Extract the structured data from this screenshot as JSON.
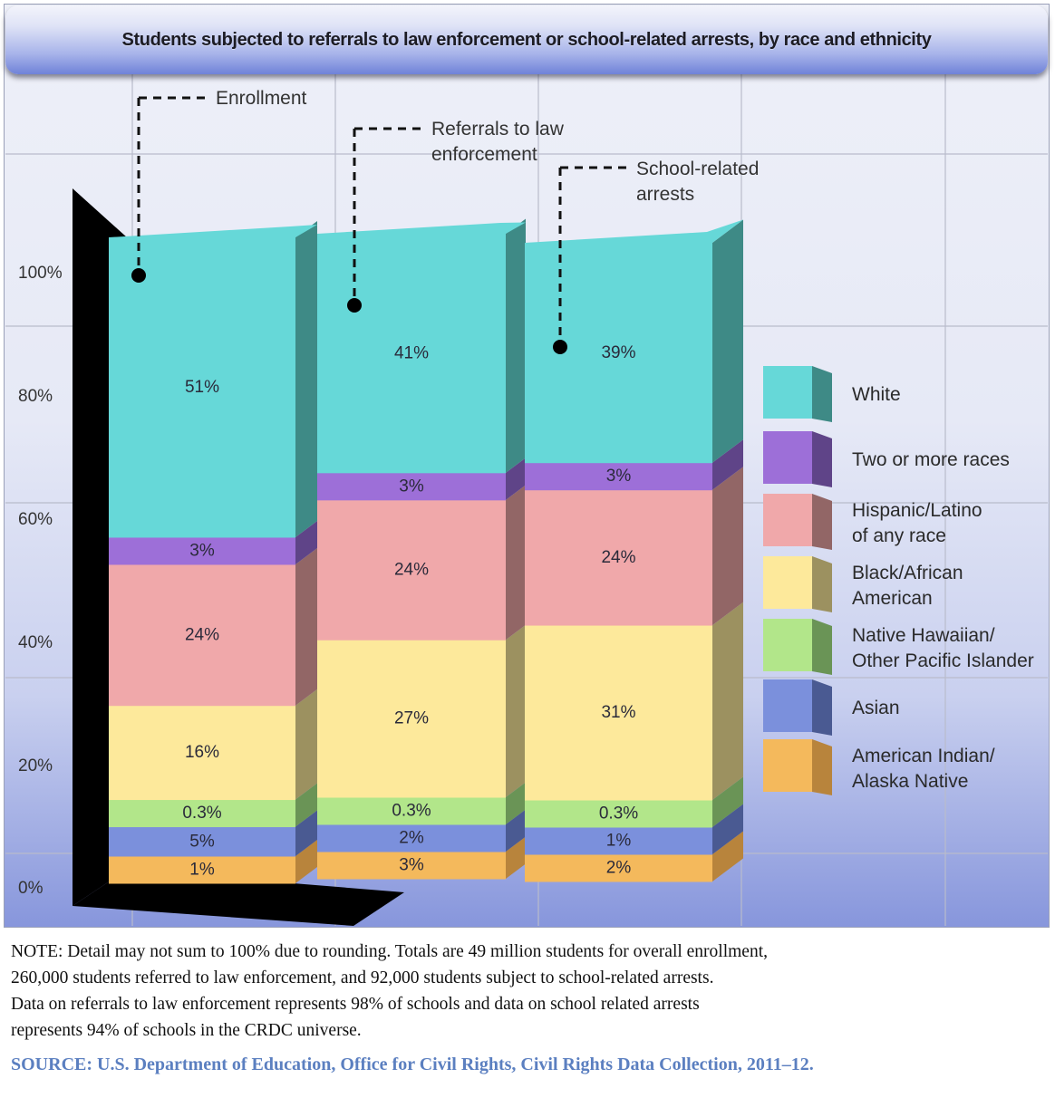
{
  "chart_data": {
    "type": "bar",
    "subtype": "stacked-3d",
    "title": "Students subjected to referrals to law enforcement or school-related arrests, by race and ethnicity",
    "ylim": [
      0,
      100
    ],
    "yticks": [
      "0%",
      "20%",
      "40%",
      "60%",
      "80%",
      "100%"
    ],
    "ytick_values": [
      0,
      20,
      40,
      60,
      80,
      100
    ],
    "grid": true,
    "legend_position": "right",
    "categories": [
      "Enrollment",
      "Referrals to law enforcement",
      "School-related arrests"
    ],
    "callouts": [
      {
        "lines": [
          "Enrollment"
        ]
      },
      {
        "lines": [
          "Referrals to law",
          "enforcement"
        ]
      },
      {
        "lines": [
          "School-related",
          "arrests"
        ]
      }
    ],
    "series": [
      {
        "name": "American Indian/ Alaska Native",
        "legend_lines": [
          "American Indian/",
          "Alaska Native"
        ],
        "color": "#f4b95c",
        "side": "#b8843c",
        "values": [
          1,
          3,
          2
        ],
        "labels": [
          "1%",
          "3%",
          "2%"
        ]
      },
      {
        "name": "Asian",
        "legend_lines": [
          "Asian"
        ],
        "color": "#7b90dc",
        "side": "#4a5a92",
        "values": [
          5,
          2,
          1
        ],
        "labels": [
          "5%",
          "2%",
          "1%"
        ]
      },
      {
        "name": "Native Hawaiian/ Other Pacific Islander",
        "legend_lines": [
          "Native Hawaiian/",
          "Other Pacific Islander"
        ],
        "color": "#b2e68a",
        "side": "#6a9456",
        "values": [
          0.3,
          0.3,
          0.3
        ],
        "labels": [
          "0.3%",
          "0.3%",
          "0.3%"
        ]
      },
      {
        "name": "Black/African American",
        "legend_lines": [
          "Black/African",
          "American"
        ],
        "color": "#fde99b",
        "side": "#9c9160",
        "values": [
          16,
          27,
          31
        ],
        "labels": [
          "16%",
          "27%",
          "31%"
        ]
      },
      {
        "name": "Hispanic/Latino of any race",
        "legend_lines": [
          "Hispanic/Latino",
          "of any race"
        ],
        "color": "#f0a8aa",
        "side": "#926666",
        "values": [
          24,
          24,
          24
        ],
        "labels": [
          "24%",
          "24%",
          "24%"
        ]
      },
      {
        "name": "Two or more races",
        "legend_lines": [
          "Two or more races"
        ],
        "color": "#9d6fd8",
        "side": "#5f4488",
        "values": [
          3,
          3,
          3
        ],
        "labels": [
          "3%",
          "3%",
          "3%"
        ]
      },
      {
        "name": "White",
        "legend_lines": [
          "White"
        ],
        "color": "#66d8d8",
        "side": "#3e8a86",
        "values": [
          51,
          41,
          39
        ],
        "labels": [
          "51%",
          "41%",
          "39%"
        ]
      }
    ]
  },
  "footer": {
    "note_lines": [
      "NOTE: Detail may not sum to 100% due to rounding. Totals are 49 million students for overall enrollment,",
      "260,000 students referred to law enforcement, and 92,000 students subject to school-related arrests.",
      "Data on referrals to law enforcement represents 98% of schools and data on school related arrests",
      "represents 94% of schools in the CRDC universe."
    ],
    "source": "SOURCE: U.S. Department of Education, Office for Civil Rights, Civil Rights Data Collection, 2011–12."
  }
}
